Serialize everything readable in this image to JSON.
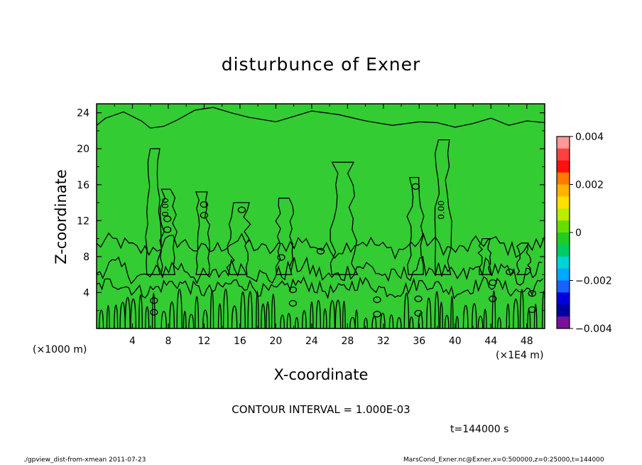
{
  "chart_data": {
    "type": "heatmap",
    "title": "disturbunce of Exner",
    "xlabel": "X-coordinate",
    "ylabel": "Z-coordinate",
    "x_unit_left": "(×1000 m)",
    "x_unit_right": "(×1E4 m)",
    "x_ticks": [
      "4",
      "8",
      "12",
      "16",
      "20",
      "24",
      "28",
      "32",
      "36",
      "40",
      "44",
      "48"
    ],
    "y_ticks": [
      "4",
      "8",
      "12",
      "16",
      "20",
      "24"
    ],
    "xlim": [
      0,
      50
    ],
    "ylim": [
      0,
      25
    ],
    "colorbar": {
      "ticks": [
        "0.004",
        "0.002",
        "0",
        "−0.002",
        "−0.004"
      ],
      "range": [
        -0.004,
        0.004
      ],
      "colors": [
        "#ff9999",
        "#ff4040",
        "#ff1010",
        "#ff7a00",
        "#ffb300",
        "#ffe000",
        "#b8ee00",
        "#66dd00",
        "#22cc22",
        "#00cc66",
        "#00d4d4",
        "#00a8ff",
        "#1a60ff",
        "#0000dd",
        "#0000a0",
        "#7a109a"
      ]
    },
    "field_color": "#33cc33",
    "contour_labels": [
      {
        "text": "0.00",
        "x": 8,
        "z": 13.5
      },
      {
        "text": "0.00",
        "x": 38.8,
        "z": 13.2
      }
    ],
    "contour_interval": "CONTOUR INTERVAL = 1.000E-03",
    "time": "t=144000 s",
    "footer_left": "./gpview_dist-from-xmean   2011-07-23",
    "footer_right": "MarsCond_Exner.nc@Exner,x=0:500000,z=0:25000,t=144000"
  }
}
